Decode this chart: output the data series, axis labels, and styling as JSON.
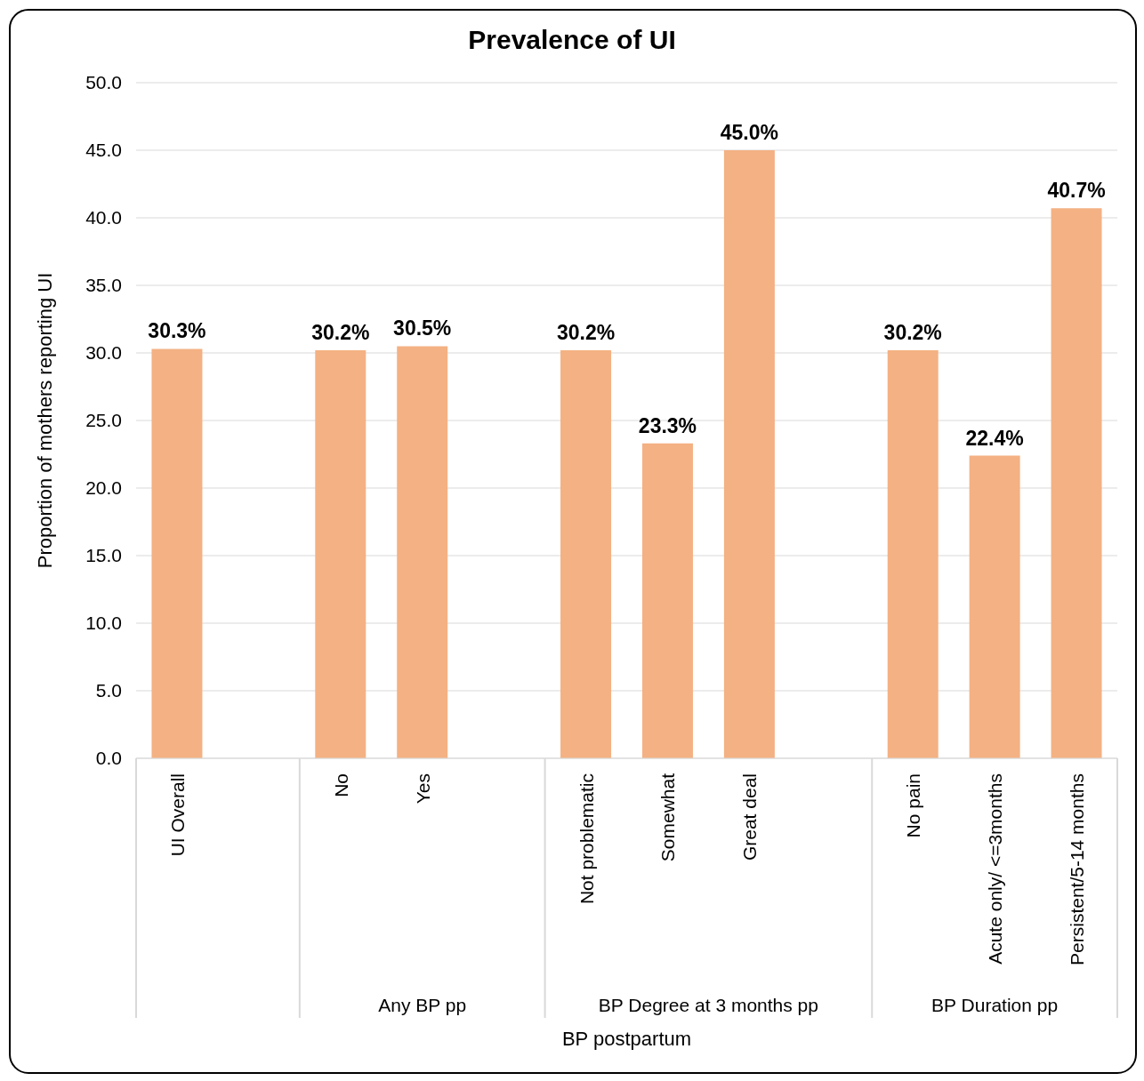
{
  "chart_data": {
    "type": "bar",
    "title": "Prevalence of UI",
    "xlabel": "BP postpartum",
    "ylabel": "Proportion of mothers reporting UI",
    "categories": [
      "UI Overall",
      null,
      "No",
      "Yes",
      null,
      "Not problematic",
      "Somewhat",
      "Great deal",
      null,
      "No pain",
      "Acute only/ <=3months",
      "Persistent/5-14 months"
    ],
    "values": [
      30.3,
      null,
      30.2,
      30.5,
      null,
      30.2,
      23.3,
      45.0,
      null,
      30.2,
      22.4,
      40.7
    ],
    "value_labels": [
      "30.3%",
      null,
      "30.2%",
      "30.5%",
      null,
      "30.2%",
      "23.3%",
      "45.0%",
      null,
      "30.2%",
      "22.4%",
      "40.7%"
    ],
    "color": "#f4b183",
    "ylim": [
      0,
      50
    ],
    "yticks": [
      {
        "value": 0,
        "label": "0.0"
      },
      {
        "value": 5,
        "label": "5.0"
      },
      {
        "value": 10,
        "label": "10.0"
      },
      {
        "value": 15,
        "label": "15.0"
      },
      {
        "value": 20,
        "label": "20.0"
      },
      {
        "value": 25,
        "label": "25.0"
      },
      {
        "value": 30,
        "label": "30.0"
      },
      {
        "value": 35,
        "label": "35.0"
      },
      {
        "value": 40,
        "label": "40.0"
      },
      {
        "value": 45,
        "label": "45.0"
      },
      {
        "value": 50,
        "label": "50.0"
      }
    ],
    "grid": "y",
    "legend": false,
    "annotations": [
      "Any BP pp",
      "BP Degree at 3 months pp",
      "BP Duration pp"
    ]
  }
}
